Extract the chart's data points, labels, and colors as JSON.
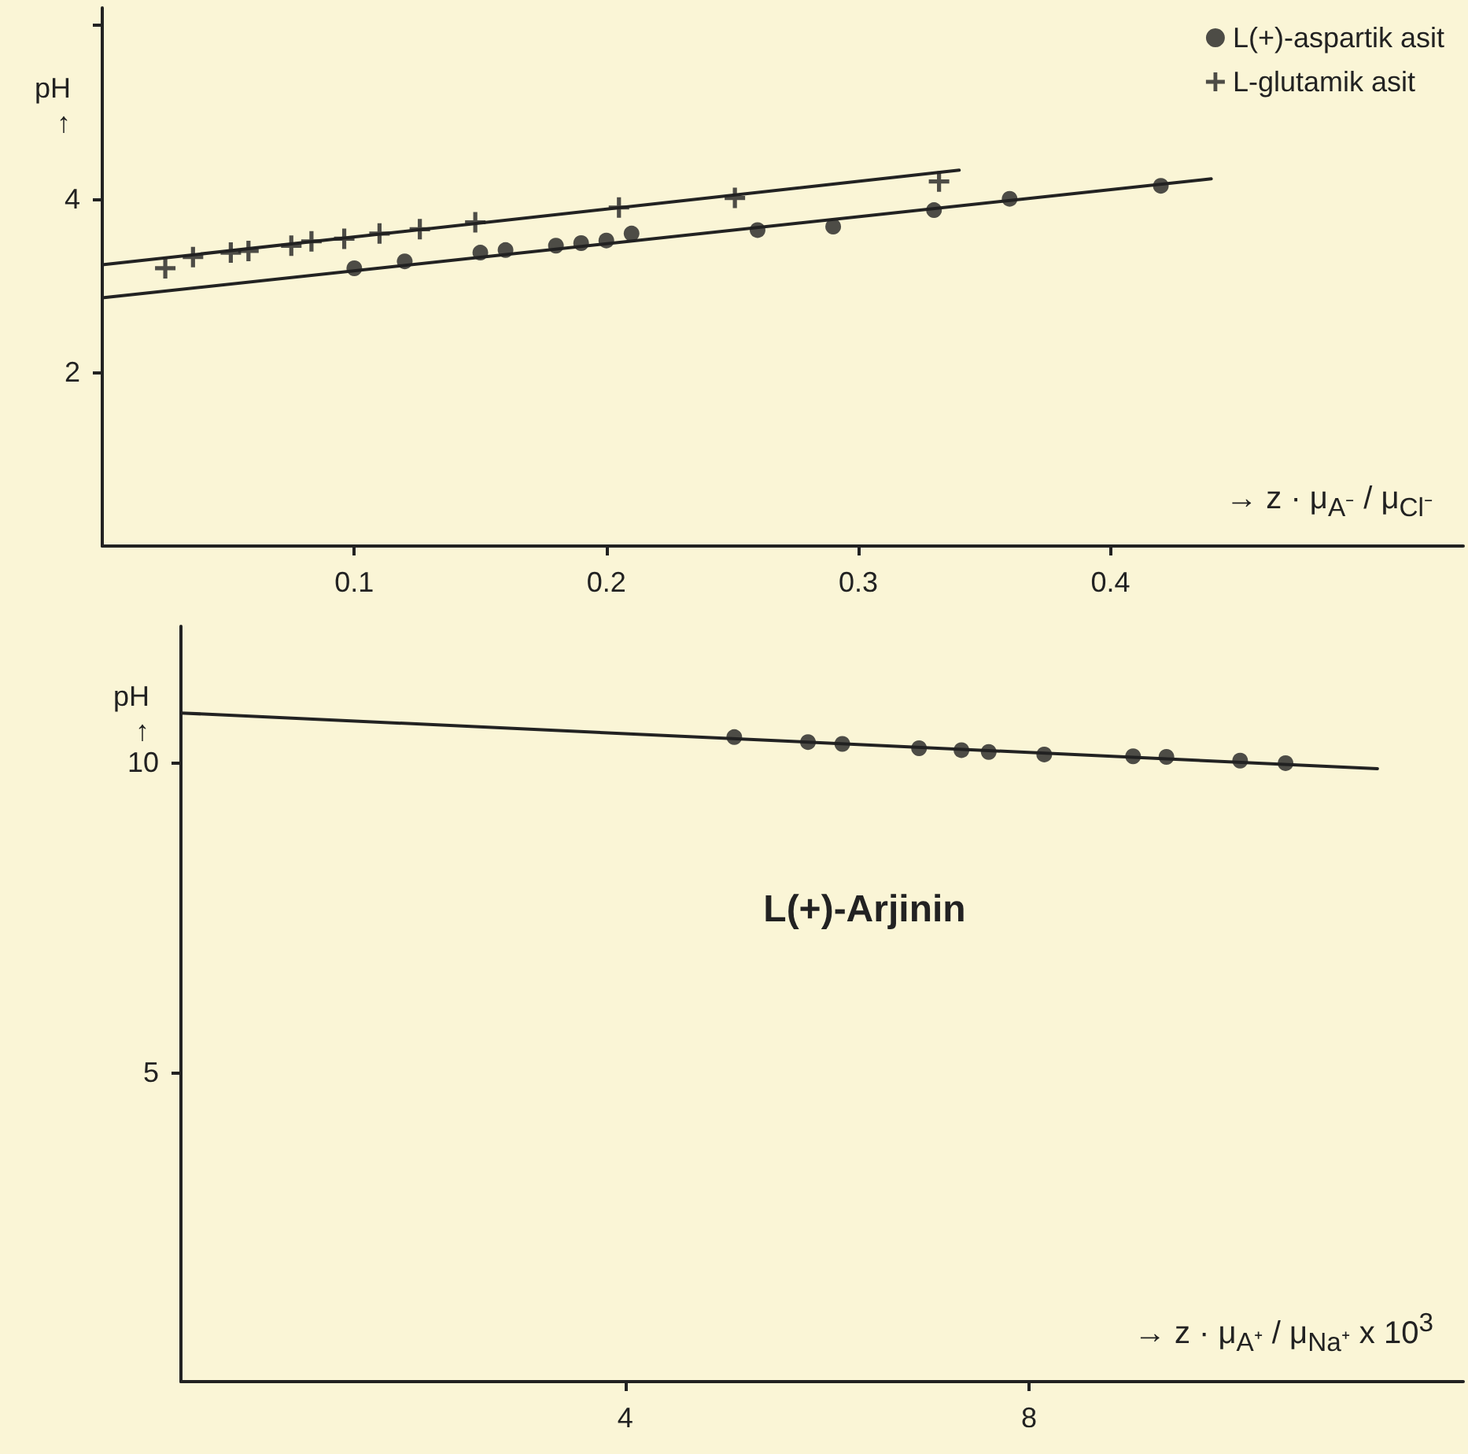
{
  "chart_data": [
    {
      "type": "scatter",
      "ylabel": "pH\n↑",
      "xlabel": "→ z · μ$_{A⁻}$ / μ$_{Cl⁻}$",
      "xlim": [
        0,
        0.54
      ],
      "xticks": [
        0.1,
        0.2,
        0.3,
        0.4
      ],
      "ylim": [
        0,
        6.2
      ],
      "yticks": [
        2,
        4,
        {
          "value": 6,
          "label": null
        }
      ],
      "legend": "top right",
      "series": [
        {
          "name": "L(+)-aspartik asit",
          "color": "#222222",
          "marker": "circle",
          "x": [
            0.1,
            0.12,
            0.15,
            0.16,
            0.18,
            0.19,
            0.2,
            0.21,
            0.26,
            0.29,
            0.33,
            0.36,
            0.42
          ],
          "values": [
            3.2,
            3.28,
            3.38,
            3.41,
            3.46,
            3.49,
            3.52,
            3.6,
            3.64,
            3.68,
            3.87,
            4.0,
            4.15
          ]
        },
        {
          "name": "L-glutamik asit",
          "color": "#222222",
          "marker": "cross",
          "x": [
            0.025,
            0.036,
            0.051,
            0.058,
            0.075,
            0.083,
            0.096,
            0.11,
            0.126,
            0.148,
            0.205,
            0.251,
            0.332
          ],
          "values": [
            3.2,
            3.33,
            3.38,
            3.4,
            3.46,
            3.51,
            3.54,
            3.6,
            3.65,
            3.73,
            3.9,
            4.01,
            4.2
          ]
        },
        {
          "type": "line",
          "color": "#222222",
          "marker": "none",
          "x": [
            0,
            0.34
          ],
          "values": [
            3.24,
            4.33
          ]
        },
        {
          "type": "line",
          "color": "#222222",
          "marker": "none",
          "x": [
            0,
            0.44
          ],
          "values": [
            2.86,
            4.23
          ]
        }
      ]
    },
    {
      "type": "scatter",
      "ylabel": "pH\n↑",
      "xlabel": "→ z · μ$_{A⁺}$ / μ$_{Na⁺}$ x 10$^{3}$",
      "xlim": [
        -0.4,
        12.3
      ],
      "xticks": [
        4,
        8
      ],
      "ylim": [
        0,
        12.2
      ],
      "yticks": [
        5,
        10
      ],
      "annotations": [
        "L(+)-Arjinin"
      ],
      "series": [
        {
          "color": "#222222",
          "marker": "circle",
          "x": [
            5.08,
            5.81,
            6.15,
            6.91,
            7.33,
            7.6,
            8.15,
            9.03,
            9.36,
            10.09,
            10.54
          ],
          "values": [
            10.41,
            10.33,
            10.3,
            10.23,
            10.2,
            10.17,
            10.13,
            10.1,
            10.09,
            10.03,
            9.99
          ]
        },
        {
          "type": "line",
          "color": "#222222",
          "marker": "none",
          "x": [
            -0.4,
            11.45
          ],
          "values": [
            10.8,
            9.9
          ]
        }
      ]
    }
  ]
}
